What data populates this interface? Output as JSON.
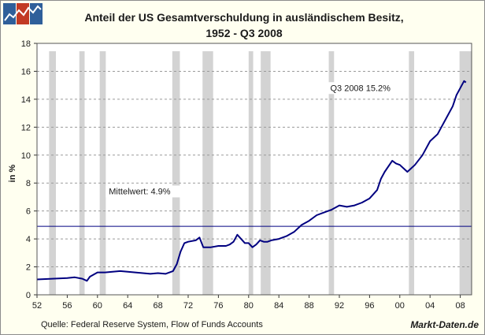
{
  "brand": "Markt-Daten.de",
  "source": "Quelle: Federal Reserve System, Flow of Funds Accounts",
  "chart_data": {
    "type": "line",
    "title": "Anteil der US Gesamtverschuldung in ausländischem Besitz,",
    "subtitle": "1952 - Q3 2008",
    "ylabel": "in %",
    "xlabel": "",
    "xlim": [
      1952,
      2009.5
    ],
    "ylim": [
      0,
      18
    ],
    "xticks": [
      52,
      56,
      60,
      64,
      68,
      72,
      76,
      80,
      84,
      88,
      92,
      96,
      "00",
      "04",
      "08"
    ],
    "xtick_years": [
      1952,
      1956,
      1960,
      1964,
      1968,
      1972,
      1976,
      1980,
      1984,
      1988,
      1992,
      1996,
      2000,
      2004,
      2008
    ],
    "yticks": [
      0,
      2,
      4,
      6,
      8,
      10,
      12,
      14,
      16,
      18
    ],
    "recessions": [
      [
        1953.6,
        1954.5
      ],
      [
        1957.6,
        1958.3
      ],
      [
        1960.3,
        1961.1
      ],
      [
        1969.9,
        1970.9
      ],
      [
        1973.9,
        1975.3
      ],
      [
        1980.0,
        1980.6
      ],
      [
        1981.6,
        1982.9
      ],
      [
        1990.6,
        1991.3
      ],
      [
        2001.2,
        2001.9
      ],
      [
        2007.9,
        2009.5
      ]
    ],
    "mean": {
      "value": 4.9,
      "label": "Mittelwert: 4.9%"
    },
    "annotation": "Q3 2008 15.2%",
    "line_color": "#000080",
    "x": [
      1952.0,
      1954.0,
      1956.0,
      1957.0,
      1958.0,
      1958.6,
      1959.0,
      1960.0,
      1961.0,
      1962.0,
      1963.0,
      1964.0,
      1965.0,
      1966.0,
      1967.0,
      1968.0,
      1969.0,
      1970.0,
      1970.5,
      1971.0,
      1971.5,
      1972.0,
      1973.0,
      1973.5,
      1974.0,
      1975.0,
      1976.0,
      1977.0,
      1977.5,
      1978.0,
      1978.5,
      1979.0,
      1979.5,
      1980.0,
      1980.5,
      1981.0,
      1981.5,
      1982.0,
      1982.5,
      1983.0,
      1984.0,
      1985.0,
      1986.0,
      1987.0,
      1988.0,
      1989.0,
      1990.0,
      1991.0,
      1992.0,
      1993.0,
      1994.0,
      1995.0,
      1996.0,
      1997.0,
      1997.5,
      1998.0,
      1999.0,
      1999.5,
      2000.0,
      2001.0,
      2002.0,
      2003.0,
      2004.0,
      2005.0,
      2005.5,
      2006.0,
      2007.0,
      2007.5,
      2008.0,
      2008.5,
      2008.75
    ],
    "y": [
      1.1,
      1.15,
      1.2,
      1.25,
      1.15,
      1.0,
      1.3,
      1.6,
      1.6,
      1.65,
      1.7,
      1.65,
      1.6,
      1.55,
      1.5,
      1.55,
      1.5,
      1.7,
      2.2,
      3.1,
      3.7,
      3.8,
      3.9,
      4.1,
      3.4,
      3.4,
      3.5,
      3.5,
      3.6,
      3.8,
      4.3,
      4.0,
      3.7,
      3.7,
      3.4,
      3.6,
      3.9,
      3.8,
      3.8,
      3.9,
      4.0,
      4.2,
      4.5,
      5.0,
      5.3,
      5.7,
      5.9,
      6.1,
      6.4,
      6.3,
      6.4,
      6.6,
      6.9,
      7.5,
      8.3,
      8.8,
      9.6,
      9.4,
      9.3,
      8.8,
      9.3,
      10.0,
      11.0,
      11.5,
      12.0,
      12.5,
      13.5,
      14.3,
      14.8,
      15.3,
      15.2
    ]
  }
}
